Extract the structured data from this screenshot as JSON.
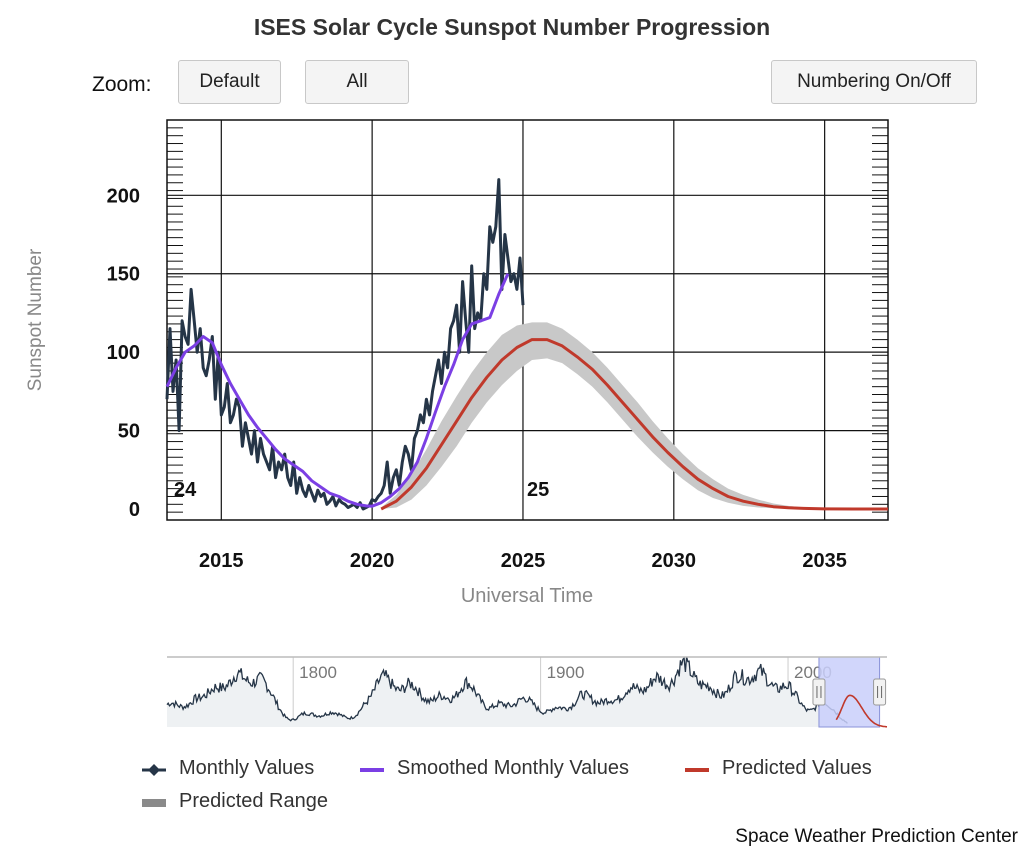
{
  "title": "ISES Solar Cycle Sunspot Number Progression",
  "zoom": {
    "label": "Zoom:",
    "buttons": [
      "Default",
      "All"
    ],
    "numbering_label": "Numbering On/Off"
  },
  "credit": "Space Weather Prediction Center",
  "colors": {
    "monthly": "#253547",
    "smoothed": "#7b3fe4",
    "predicted": "#c0392b",
    "range": "#c8c8c8",
    "navigator_window": "#c9cffa"
  },
  "chart_data": {
    "type": "line",
    "xlabel": "Universal Time",
    "ylabel": "Sunspot Number",
    "xlim": [
      2013.2,
      2037.1
    ],
    "ylim": [
      -7,
      248
    ],
    "x_ticks": [
      2015,
      2020,
      2025,
      2030,
      2035
    ],
    "y_ticks": [
      0,
      50,
      100,
      150,
      200
    ],
    "grid": true,
    "cycle_labels": [
      {
        "text": "24",
        "x": 2013.3
      },
      {
        "text": "25",
        "x": 2025.0
      }
    ],
    "series": [
      {
        "name": "Monthly Values",
        "x": [
          2013.2,
          2013.3,
          2013.4,
          2013.5,
          2013.6,
          2013.7,
          2013.8,
          2013.9,
          2014.0,
          2014.1,
          2014.2,
          2014.3,
          2014.4,
          2014.5,
          2014.6,
          2014.7,
          2014.8,
          2014.9,
          2015.0,
          2015.1,
          2015.2,
          2015.3,
          2015.4,
          2015.5,
          2015.6,
          2015.7,
          2015.8,
          2015.9,
          2016.0,
          2016.1,
          2016.2,
          2016.3,
          2016.4,
          2016.5,
          2016.6,
          2016.7,
          2016.8,
          2016.9,
          2017.0,
          2017.1,
          2017.2,
          2017.3,
          2017.4,
          2017.5,
          2017.6,
          2017.7,
          2017.8,
          2017.9,
          2018.0,
          2018.1,
          2018.2,
          2018.3,
          2018.4,
          2018.5,
          2018.6,
          2018.7,
          2018.8,
          2018.9,
          2019.0,
          2019.1,
          2019.2,
          2019.3,
          2019.4,
          2019.5,
          2019.6,
          2019.7,
          2019.8,
          2019.9,
          2020.0,
          2020.1,
          2020.2,
          2020.3,
          2020.4,
          2020.5,
          2020.6,
          2020.7,
          2020.8,
          2020.9,
          2021.0,
          2021.1,
          2021.2,
          2021.3,
          2021.4,
          2021.5,
          2021.6,
          2021.7,
          2021.8,
          2021.9,
          2022.0,
          2022.1,
          2022.2,
          2022.3,
          2022.4,
          2022.5,
          2022.6,
          2022.7,
          2022.8,
          2022.9,
          2023.0,
          2023.1,
          2023.2,
          2023.3,
          2023.4,
          2023.5,
          2023.6,
          2023.7,
          2023.8,
          2023.9,
          2024.0,
          2024.1,
          2024.2,
          2024.3,
          2024.4,
          2024.5,
          2024.6,
          2024.7,
          2024.8,
          2024.9,
          2025.0
        ],
        "values": [
          70,
          115,
          75,
          95,
          50,
          120,
          110,
          105,
          140,
          120,
          100,
          115,
          90,
          85,
          95,
          110,
          70,
          100,
          60,
          65,
          80,
          55,
          60,
          70,
          65,
          40,
          55,
          45,
          35,
          50,
          30,
          45,
          35,
          30,
          25,
          40,
          20,
          30,
          25,
          35,
          20,
          15,
          30,
          10,
          20,
          12,
          8,
          15,
          10,
          5,
          12,
          8,
          10,
          3,
          5,
          8,
          2,
          6,
          4,
          3,
          1,
          2,
          3,
          1,
          4,
          0,
          1,
          2,
          6,
          5,
          8,
          10,
          15,
          30,
          10,
          20,
          25,
          15,
          30,
          40,
          35,
          25,
          45,
          50,
          60,
          55,
          70,
          60,
          75,
          85,
          95,
          80,
          100,
          90,
          115,
          120,
          130,
          100,
          145,
          120,
          100,
          155,
          115,
          125,
          120,
          150,
          140,
          180,
          170,
          180,
          210,
          140,
          175,
          160,
          145,
          150,
          140,
          160,
          130
        ],
        "color": "#253547"
      },
      {
        "name": "Smoothed Monthly Values",
        "x": [
          2013.2,
          2013.5,
          2013.8,
          2014.1,
          2014.4,
          2014.7,
          2015.0,
          2015.3,
          2015.6,
          2015.9,
          2016.2,
          2016.5,
          2016.8,
          2017.1,
          2017.4,
          2017.7,
          2018.0,
          2018.3,
          2018.6,
          2018.9,
          2019.2,
          2019.5,
          2019.8,
          2020.0,
          2020.3,
          2020.6,
          2020.9,
          2021.2,
          2021.5,
          2021.8,
          2022.1,
          2022.4,
          2022.7,
          2023.0,
          2023.3,
          2023.6,
          2023.9,
          2024.2,
          2024.5
        ],
        "values": [
          78,
          90,
          100,
          104,
          110,
          106,
          92,
          80,
          70,
          60,
          52,
          45,
          38,
          32,
          28,
          24,
          18,
          14,
          10,
          8,
          5,
          3,
          2,
          1.8,
          4,
          8,
          13,
          20,
          30,
          45,
          62,
          78,
          92,
          108,
          118,
          120,
          122,
          137,
          150
        ],
        "color": "#7b3fe4"
      },
      {
        "name": "Predicted Values",
        "x": [
          2020.3,
          2020.8,
          2021.3,
          2021.8,
          2022.3,
          2022.8,
          2023.3,
          2023.8,
          2024.3,
          2024.8,
          2025.3,
          2025.8,
          2026.3,
          2026.8,
          2027.3,
          2027.8,
          2028.3,
          2028.8,
          2029.3,
          2029.8,
          2030.3,
          2030.8,
          2031.3,
          2031.8,
          2032.3,
          2032.8,
          2033.3,
          2033.8,
          2034.3,
          2035.0,
          2036.0,
          2037.1
        ],
        "values": [
          0,
          5,
          14,
          26,
          41,
          56,
          71,
          84,
          95,
          103,
          108,
          108,
          104,
          97,
          89,
          79,
          68,
          57,
          46,
          36,
          27,
          19,
          13,
          8,
          5,
          3,
          1.5,
          0.8,
          0.4,
          0.1,
          0,
          0
        ],
        "color": "#c0392b"
      },
      {
        "name": "Predicted Range",
        "x": [
          2020.3,
          2020.8,
          2021.3,
          2021.8,
          2022.3,
          2022.8,
          2023.3,
          2023.8,
          2024.3,
          2024.8,
          2025.3,
          2025.8,
          2026.3,
          2026.8,
          2027.3,
          2027.8,
          2028.3,
          2028.8,
          2029.3,
          2029.8,
          2030.3,
          2030.8,
          2031.3,
          2031.8,
          2032.3,
          2032.8,
          2033.3,
          2033.8,
          2034.3,
          2035.0,
          2036.0,
          2037.1
        ],
        "upper": [
          1,
          9,
          22,
          38,
          56,
          72,
          87,
          100,
          111,
          117,
          119,
          119,
          115,
          108,
          100,
          90,
          79,
          68,
          56,
          45,
          35,
          26,
          19,
          13,
          9,
          6,
          3.5,
          2,
          1,
          0.5,
          0.2,
          0
        ],
        "lower": [
          0,
          1,
          6,
          15,
          27,
          40,
          55,
          68,
          79,
          88,
          95,
          96,
          93,
          86,
          78,
          68,
          57,
          46,
          36,
          27,
          19,
          12,
          7,
          4,
          2,
          1,
          0.5,
          0.2,
          0,
          0,
          0,
          0
        ],
        "color": "#c8c8c8"
      }
    ],
    "navigator": {
      "x_ticks": [
        1800,
        1900,
        2000
      ],
      "xlim": [
        1749,
        2040
      ],
      "window": [
        2012.5,
        2037.0
      ],
      "cycle_peaks": [
        [
          1750.3,
          83
        ],
        [
          1761.5,
          86
        ],
        [
          1769.7,
          106
        ],
        [
          1778.4,
          154
        ],
        [
          1788.1,
          132
        ],
        [
          1805.2,
          47
        ],
        [
          1816.4,
          46
        ],
        [
          1829.9,
          71
        ],
        [
          1837.2,
          146
        ],
        [
          1848.1,
          131
        ],
        [
          1860.1,
          98
        ],
        [
          1870.6,
          140
        ],
        [
          1883.9,
          74
        ],
        [
          1894.1,
          88
        ],
        [
          1907.0,
          64
        ],
        [
          1917.6,
          104
        ],
        [
          1928.4,
          78
        ],
        [
          1937.4,
          119
        ],
        [
          1947.5,
          152
        ],
        [
          1958.2,
          201
        ],
        [
          1968.9,
          111
        ],
        [
          1979.9,
          165
        ],
        [
          1989.6,
          158
        ],
        [
          2000.3,
          121
        ],
        [
          2014.3,
          82
        ],
        [
          2025.0,
          110
        ]
      ]
    }
  }
}
